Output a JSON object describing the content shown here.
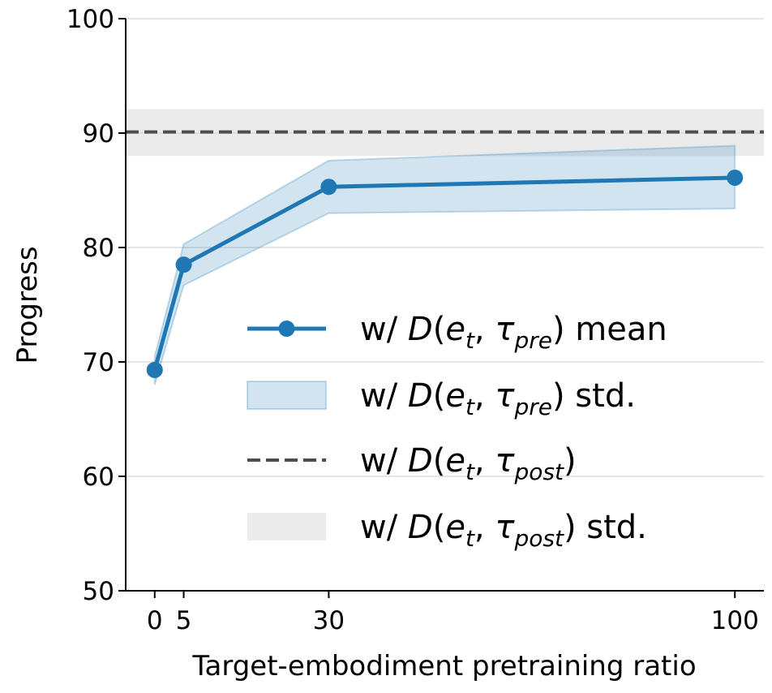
{
  "chart_data": {
    "type": "line",
    "title": "",
    "xlabel": "Target-embodiment pretraining ratio",
    "ylabel": "Progress",
    "xlim": [
      -5,
      105
    ],
    "ylim": [
      50,
      100
    ],
    "xticks": [
      0,
      5,
      30,
      100
    ],
    "xtick_labels": [
      "0",
      "5",
      "30",
      "100"
    ],
    "yticks": [
      50,
      60,
      70,
      80,
      90,
      100
    ],
    "ytick_labels": [
      "50",
      "60",
      "70",
      "80",
      "90",
      "100"
    ],
    "grid": "horizontal",
    "legend_position": "center-right",
    "series": [
      {
        "name": "w/ D(e_t, τ_pre) mean",
        "kind": "line-markers",
        "color": "#1f77b4",
        "x": [
          0,
          5,
          30,
          100
        ],
        "y": [
          69.3,
          78.5,
          85.3,
          86.1
        ]
      },
      {
        "name": "w/ D(e_t, τ_pre) std.",
        "kind": "band",
        "color": "#1f77b4",
        "x": [
          0,
          5,
          30,
          100
        ],
        "lower": [
          68.0,
          76.7,
          83.0,
          83.4
        ],
        "upper": [
          70.5,
          80.3,
          87.6,
          88.9
        ]
      },
      {
        "name": "w/ D(e_t, τ_post)",
        "kind": "hline-dashed",
        "color": "#4d4d4d",
        "y": 90.1
      },
      {
        "name": "w/ D(e_t, τ_post) std.",
        "kind": "hband",
        "color": "#d3d3d3",
        "lower": 88.0,
        "upper": 92.1
      }
    ],
    "legend": [
      {
        "prefix": "w/ ",
        "func": "D",
        "sub": "pre",
        "suffix": " mean"
      },
      {
        "prefix": "w/ ",
        "func": "D",
        "sub": "pre",
        "suffix": " std."
      },
      {
        "prefix": "w/ ",
        "func": "D",
        "sub": "post",
        "suffix": ""
      },
      {
        "prefix": "w/ ",
        "func": "D",
        "sub": "post",
        "suffix": " std."
      }
    ]
  }
}
